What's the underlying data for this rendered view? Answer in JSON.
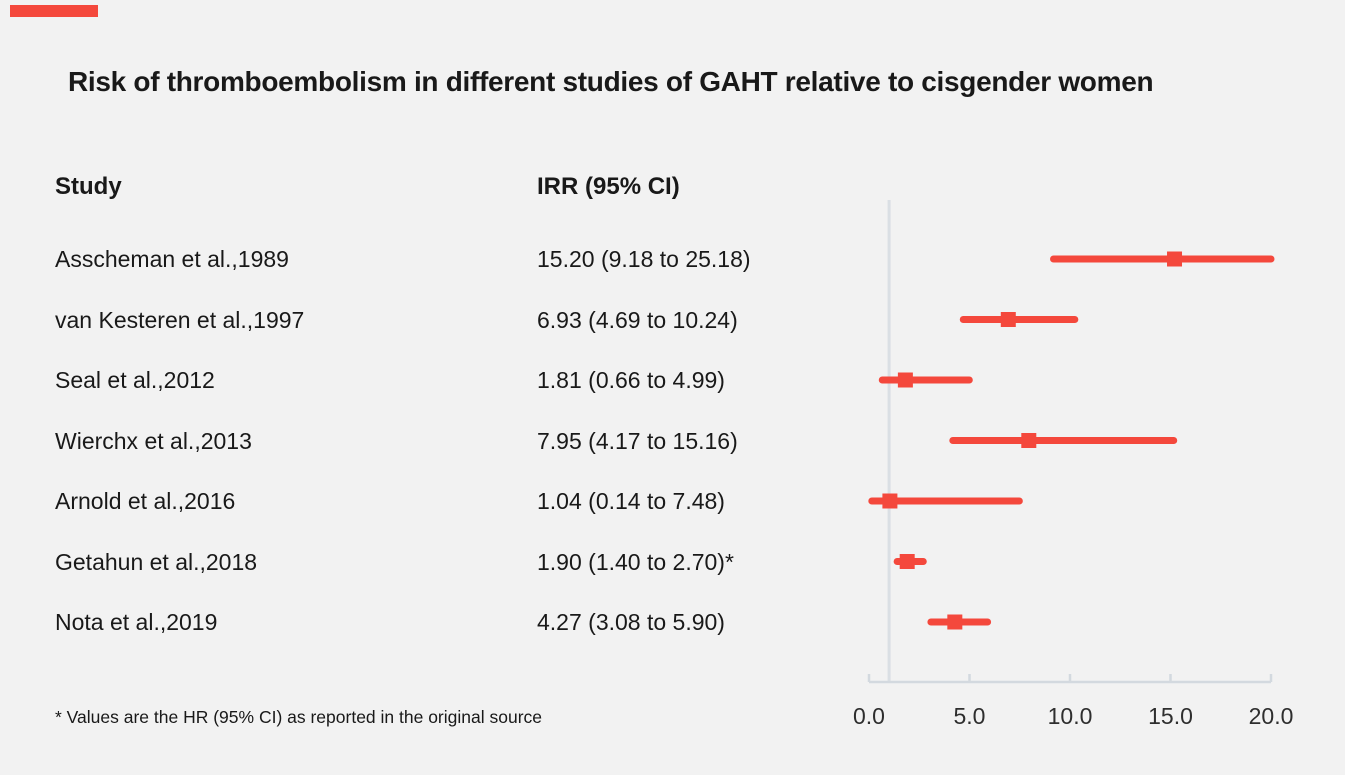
{
  "title": "Risk of thromboembolism in different studies of GAHT relative to cisgender women",
  "columns": {
    "study": "Study",
    "irr": "IRR (95% CI)"
  },
  "footnote": "* Values are the HR (95% CI) as reported in the original source",
  "colors": {
    "accent": "#f4483c",
    "background": "#f2f2f2",
    "reference_line": "#dadfe4",
    "axis": "#d3d9df",
    "text": "#191919",
    "tick_text": "#2e2e2e"
  },
  "chart_data": {
    "type": "scatter",
    "subtype": "forest-plot",
    "title": "Risk of thromboembolism in different studies of GAHT relative to cisgender women",
    "xlabel": "",
    "ylabel": "",
    "xlim": [
      0.0,
      20.0
    ],
    "tick_values": [
      0,
      5,
      10,
      15,
      20
    ],
    "tick_labels": [
      "0.0",
      "5.0",
      "10.0",
      "15.0",
      "20.0"
    ],
    "reference_line": 1.0,
    "grid": false,
    "legend": false,
    "marker_color": "#f4483c",
    "studies": [
      {
        "label": "Asscheman et al.,1989",
        "irr_text": "15.20 (9.18 to 25.18)",
        "estimate": 15.2,
        "ci_low": 9.18,
        "ci_high": 25.18
      },
      {
        "label": "van Kesteren et al.,1997",
        "irr_text": "6.93 (4.69 to 10.24)",
        "estimate": 6.93,
        "ci_low": 4.69,
        "ci_high": 10.24
      },
      {
        "label": "Seal et al.,2012",
        "irr_text": "1.81 (0.66 to 4.99)",
        "estimate": 1.81,
        "ci_low": 0.66,
        "ci_high": 4.99
      },
      {
        "label": "Wierchx et al.,2013",
        "irr_text": "7.95 (4.17 to 15.16)",
        "estimate": 7.95,
        "ci_low": 4.17,
        "ci_high": 15.16
      },
      {
        "label": "Arnold et al.,2016",
        "irr_text": "1.04 (0.14 to 7.48)",
        "estimate": 1.04,
        "ci_low": 0.14,
        "ci_high": 7.48
      },
      {
        "label": "Getahun et al.,2018",
        "irr_text": "1.90 (1.40 to 2.70)*",
        "estimate": 1.9,
        "ci_low": 1.4,
        "ci_high": 2.7
      },
      {
        "label": "Nota et al.,2019",
        "irr_text": "4.27 (3.08 to 5.90)",
        "estimate": 4.27,
        "ci_low": 3.08,
        "ci_high": 5.9
      }
    ]
  }
}
